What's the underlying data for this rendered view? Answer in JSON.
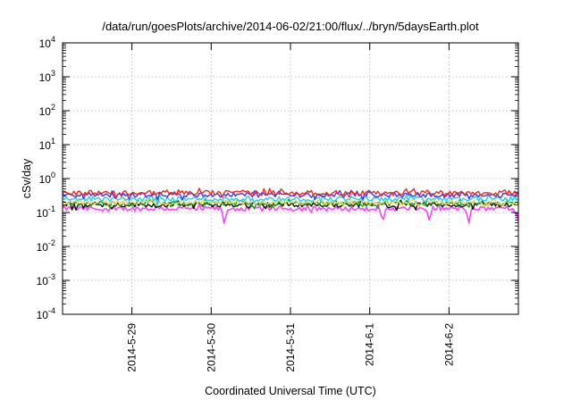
{
  "chart_data": {
    "type": "line",
    "title": "/data/run/goesPlots/archive/2014-06-02/21:00/flux/../bryn/5daysEarth.plot",
    "xlabel": "Coordinated Universal Time (UTC)",
    "ylabel": "cSv/day",
    "yscale": "log",
    "ylim": [
      0.0001,
      10000
    ],
    "y_ticks": [
      {
        "value": 0.0001,
        "base": "10",
        "exp": "-4"
      },
      {
        "value": 0.001,
        "base": "10",
        "exp": "-3"
      },
      {
        "value": 0.01,
        "base": "10",
        "exp": "-2"
      },
      {
        "value": 0.1,
        "base": "10",
        "exp": "-1"
      },
      {
        "value": 1,
        "base": "10",
        "exp": "0"
      },
      {
        "value": 10,
        "base": "10",
        "exp": "1"
      },
      {
        "value": 100,
        "base": "10",
        "exp": "2"
      },
      {
        "value": 1000,
        "base": "10",
        "exp": "3"
      },
      {
        "value": 10000,
        "base": "10",
        "exp": "4"
      }
    ],
    "xlim": [
      "2014-05-28 03:00",
      "2014-06-02 21:00"
    ],
    "x_ticks": [
      "2014-5-29",
      "2014-5-30",
      "2014-5-31",
      "2014-6-1",
      "2014-6-2"
    ],
    "grid": true,
    "legend": "none",
    "series": [
      {
        "color": "#ff2020",
        "level": 0.38,
        "x_start": "2014-05-28 03:00",
        "x_end": "2014-06-02 21:00",
        "dips": []
      },
      {
        "color": "#2a3cff",
        "level": 0.33,
        "x_start": "2014-05-28 03:00",
        "x_end": "2014-06-02 21:00",
        "dips": []
      },
      {
        "color": "#18d6e0",
        "level": 0.25,
        "x_start": "2014-05-28 03:00",
        "x_end": "2014-06-02 21:00",
        "dips": []
      },
      {
        "color": "#ffd060",
        "level": 0.2,
        "x_start": "2014-05-28 03:00",
        "x_end": "2014-06-02 21:00",
        "dips": []
      },
      {
        "color": "#18a018",
        "level": 0.185,
        "x_start": "2014-05-28 03:00",
        "x_end": "2014-06-02 21:00",
        "dips": []
      },
      {
        "color": "#111111",
        "level": 0.17,
        "x_start": "2014-05-28 03:00",
        "x_end": "2014-06-02 21:00",
        "dips": []
      },
      {
        "color": "#ff40ff",
        "level": 0.13,
        "x_start": "2014-05-28 03:00",
        "x_end": "2014-06-02 21:00",
        "dips": [
          {
            "x": "2014-05-30 04:00",
            "value": 0.04
          },
          {
            "x": "2014-06-01 04:00",
            "value": 0.05
          },
          {
            "x": "2014-06-01 18:00",
            "value": 0.06
          },
          {
            "x": "2014-06-02 06:00",
            "value": 0.045
          },
          {
            "x": "2014-06-02 21:00",
            "value": 0.055
          }
        ]
      }
    ]
  }
}
